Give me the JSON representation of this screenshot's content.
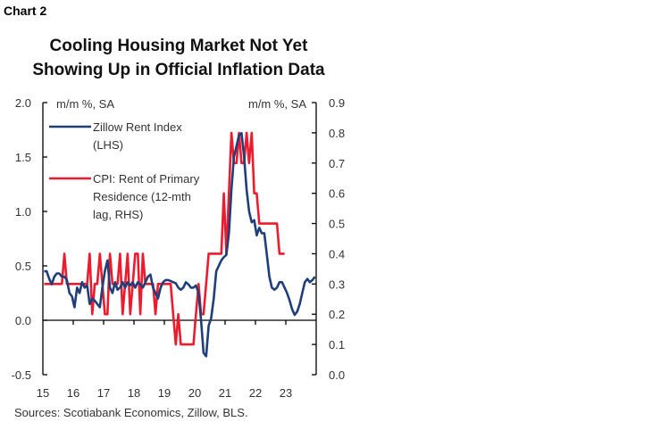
{
  "chart_label": "Chart 2",
  "source": "Sources: Scotiabank Economics, Zillow, BLS.",
  "chart_data": {
    "type": "line",
    "title": [
      "Cooling Housing Market Not Yet",
      "Showing Up in Official Inflation Data"
    ],
    "ylabel_left": "m/m %, SA",
    "ylabel_right": "m/m %, SA",
    "ylim_left": [
      -0.5,
      2.0
    ],
    "ylim_right": [
      0.0,
      0.9
    ],
    "yticks_left": [
      "2.0",
      "1.5",
      "1.0",
      "0.5",
      "0.0",
      "-0.5"
    ],
    "yticks_left_values": [
      2.0,
      1.5,
      1.0,
      0.5,
      0.0,
      -0.5
    ],
    "yticks_right": [
      "0.9",
      "0.8",
      "0.7",
      "0.6",
      "0.5",
      "0.4",
      "0.3",
      "0.2",
      "0.1",
      "0.0"
    ],
    "yticks_right_values": [
      0.9,
      0.8,
      0.7,
      0.6,
      0.5,
      0.4,
      0.3,
      0.2,
      0.1,
      0.0
    ],
    "xticks": [
      "15",
      "16",
      "17",
      "18",
      "19",
      "20",
      "21",
      "22",
      "23"
    ],
    "x_start": "2015-01",
    "x_frequency": "monthly",
    "grid": false,
    "legend_position": "top-left",
    "series": [
      {
        "name": "Zillow Rent Index (LHS)",
        "legend_lines": [
          "Zillow Rent Index",
          "(LHS)"
        ],
        "axis": "left",
        "color": "#1f3f7a",
        "values": [
          0.45,
          0.45,
          0.38,
          0.33,
          0.4,
          0.43,
          0.43,
          0.4,
          0.4,
          0.37,
          0.25,
          0.22,
          0.12,
          0.3,
          0.25,
          0.35,
          0.3,
          0.32,
          0.15,
          0.2,
          0.18,
          0.15,
          0.12,
          0.3,
          0.45,
          0.55,
          0.3,
          0.25,
          0.35,
          0.28,
          0.3,
          0.35,
          0.3,
          0.35,
          0.32,
          0.35,
          0.3,
          0.35,
          0.33,
          0.3,
          0.35,
          0.4,
          0.42,
          0.3,
          0.25,
          0.2,
          0.3,
          0.35,
          0.37,
          0.37,
          0.36,
          0.35,
          0.34,
          0.3,
          0.28,
          0.3,
          0.35,
          0.33,
          0.3,
          0.3,
          0.32,
          0.25,
          0.0,
          -0.3,
          -0.33,
          -0.05,
          0.02,
          0.2,
          0.45,
          0.5,
          0.55,
          0.58,
          0.6,
          0.8,
          1.2,
          1.5,
          1.6,
          1.7,
          1.72,
          1.5,
          1.2,
          1.0,
          0.9,
          0.92,
          0.78,
          0.85,
          0.8,
          0.8,
          0.6,
          0.4,
          0.3,
          0.28,
          0.3,
          0.35,
          0.35,
          0.3,
          0.25,
          0.18,
          0.1,
          0.05,
          0.08,
          0.15,
          0.25,
          0.35,
          0.38,
          0.35,
          0.37,
          0.4
        ]
      },
      {
        "name": "CPI: Rent of Primary Residence (12-mth lag, RHS)",
        "legend_lines": [
          "CPI: Rent of Primary",
          "Residence (12-mth",
          "lag, RHS)"
        ],
        "axis": "right",
        "color": "#ec1c2e",
        "values": [
          0.3,
          0.3,
          0.3,
          0.3,
          0.3,
          0.3,
          0.3,
          0.3,
          0.4,
          0.3,
          0.3,
          0.3,
          0.3,
          0.3,
          0.3,
          0.3,
          0.3,
          0.3,
          0.4,
          0.2,
          0.3,
          0.3,
          0.4,
          0.3,
          0.2,
          0.2,
          0.4,
          0.3,
          0.3,
          0.3,
          0.4,
          0.2,
          0.3,
          0.4,
          0.2,
          0.3,
          0.4,
          0.4,
          0.2,
          0.4,
          0.3,
          0.3,
          0.3,
          0.3,
          0.2,
          0.3,
          0.3,
          0.3,
          0.3,
          0.3,
          0.3,
          0.2,
          0.1,
          0.2,
          0.1,
          0.1,
          0.1,
          0.1,
          0.1,
          0.1,
          0.2,
          0.3,
          0.2,
          0.2,
          0.3,
          0.4,
          0.4,
          0.4,
          0.4,
          0.4,
          0.4,
          0.6,
          0.4,
          0.6,
          0.8,
          0.7,
          0.7,
          0.8,
          0.7,
          0.7,
          0.8,
          0.7,
          0.8,
          0.6,
          0.6,
          0.5,
          0.5,
          0.5,
          0.5,
          0.5,
          0.5,
          0.5,
          0.5,
          0.4,
          0.4,
          0.4
        ]
      }
    ]
  }
}
